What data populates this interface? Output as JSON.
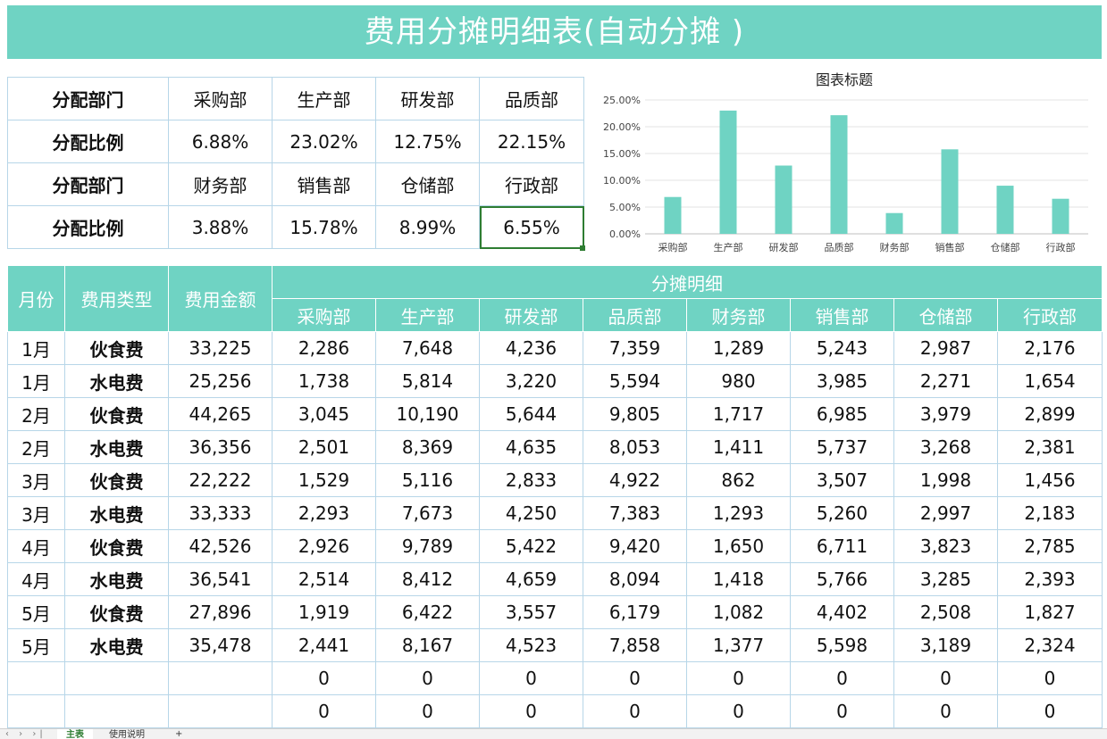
{
  "title": "费用分摊明细表(自动分摊 )",
  "ratio_table": {
    "label_dept": "分配部门",
    "label_ratio": "分配比例",
    "row1_depts": [
      "采购部",
      "生产部",
      "研发部",
      "品质部"
    ],
    "row1_ratios": [
      "6.88%",
      "23.02%",
      "12.75%",
      "22.15%"
    ],
    "row2_depts": [
      "财务部",
      "销售部",
      "仓储部",
      "行政部"
    ],
    "row2_ratios": [
      "3.88%",
      "15.78%",
      "8.99%",
      "6.55%"
    ]
  },
  "chart_data": {
    "type": "bar",
    "title": "图表标题",
    "categories": [
      "采购部",
      "生产部",
      "研发部",
      "品质部",
      "财务部",
      "销售部",
      "仓储部",
      "行政部"
    ],
    "values": [
      6.88,
      23.02,
      12.75,
      22.15,
      3.88,
      15.78,
      8.99,
      6.55
    ],
    "yticks": [
      "0.00%",
      "5.00%",
      "10.00%",
      "15.00%",
      "20.00%",
      "25.00%"
    ],
    "ylim": [
      0,
      25
    ],
    "grid": true,
    "bar_color": "#6fd3c3"
  },
  "detail": {
    "h_month": "月份",
    "h_type": "费用类型",
    "h_amount": "费用金额",
    "h_group": "分摊明细",
    "h_depts": [
      "采购部",
      "生产部",
      "研发部",
      "品质部",
      "财务部",
      "销售部",
      "仓储部",
      "行政部"
    ],
    "rows": [
      {
        "month": "1月",
        "type": "伙食费",
        "amount": "33,225",
        "vals": [
          "2,286",
          "7,648",
          "4,236",
          "7,359",
          "1,289",
          "5,243",
          "2,987",
          "2,176"
        ]
      },
      {
        "month": "1月",
        "type": "水电费",
        "amount": "25,256",
        "vals": [
          "1,738",
          "5,814",
          "3,220",
          "5,594",
          "980",
          "3,985",
          "2,271",
          "1,654"
        ]
      },
      {
        "month": "2月",
        "type": "伙食费",
        "amount": "44,265",
        "vals": [
          "3,045",
          "10,190",
          "5,644",
          "9,805",
          "1,717",
          "6,985",
          "3,979",
          "2,899"
        ]
      },
      {
        "month": "2月",
        "type": "水电费",
        "amount": "36,356",
        "vals": [
          "2,501",
          "8,369",
          "4,635",
          "8,053",
          "1,411",
          "5,737",
          "3,268",
          "2,381"
        ]
      },
      {
        "month": "3月",
        "type": "伙食费",
        "amount": "22,222",
        "vals": [
          "1,529",
          "5,116",
          "2,833",
          "4,922",
          "862",
          "3,507",
          "1,998",
          "1,456"
        ]
      },
      {
        "month": "3月",
        "type": "水电费",
        "amount": "33,333",
        "vals": [
          "2,293",
          "7,673",
          "4,250",
          "7,383",
          "1,293",
          "5,260",
          "2,997",
          "2,183"
        ]
      },
      {
        "month": "4月",
        "type": "伙食费",
        "amount": "42,526",
        "vals": [
          "2,926",
          "9,789",
          "5,422",
          "9,420",
          "1,650",
          "6,711",
          "3,823",
          "2,785"
        ]
      },
      {
        "month": "4月",
        "type": "水电费",
        "amount": "36,541",
        "vals": [
          "2,514",
          "8,412",
          "4,659",
          "8,094",
          "1,418",
          "5,766",
          "3,285",
          "2,393"
        ]
      },
      {
        "month": "5月",
        "type": "伙食费",
        "amount": "27,896",
        "vals": [
          "1,919",
          "6,422",
          "3,557",
          "6,179",
          "1,082",
          "4,402",
          "2,508",
          "1,827"
        ]
      },
      {
        "month": "5月",
        "type": "水电费",
        "amount": "35,478",
        "vals": [
          "2,441",
          "8,167",
          "4,523",
          "7,858",
          "1,377",
          "5,598",
          "3,189",
          "2,324"
        ]
      },
      {
        "month": "",
        "type": "",
        "amount": "",
        "vals": [
          "0",
          "0",
          "0",
          "0",
          "0",
          "0",
          "0",
          "0"
        ]
      },
      {
        "month": "",
        "type": "",
        "amount": "",
        "vals": [
          "0",
          "0",
          "0",
          "0",
          "0",
          "0",
          "0",
          "0"
        ]
      }
    ]
  },
  "sheet_tabs": {
    "nav": "‹ › ›|",
    "active": "主表",
    "other": "使用说明",
    "add": "+"
  }
}
